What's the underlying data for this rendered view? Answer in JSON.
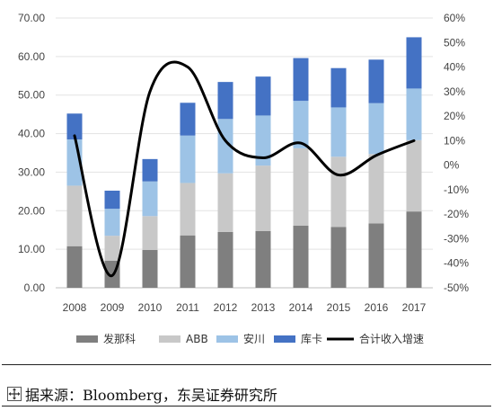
{
  "chart_data": {
    "type": "bar",
    "stacked": true,
    "categories": [
      "2008",
      "2009",
      "2010",
      "2011",
      "2012",
      "2013",
      "2014",
      "2015",
      "2016",
      "2017"
    ],
    "series": [
      {
        "name": "发那科",
        "color": "#7f7f7f",
        "values": [
          10.8,
          7.0,
          9.8,
          13.6,
          14.5,
          14.7,
          16.1,
          15.8,
          16.7,
          19.8
        ]
      },
      {
        "name": "ABB",
        "color": "#c8c8c8",
        "values": [
          15.7,
          6.5,
          8.8,
          13.6,
          15.2,
          17.0,
          20.1,
          18.2,
          18.0,
          18.5
        ]
      },
      {
        "name": "安川",
        "color": "#9dc3e6",
        "values": [
          12.0,
          7.0,
          9.0,
          12.3,
          14.1,
          13.0,
          12.3,
          12.8,
          13.2,
          13.4
        ]
      },
      {
        "name": "库卡",
        "color": "#4472c4",
        "values": [
          6.7,
          4.7,
          5.8,
          8.5,
          9.6,
          10.1,
          11.1,
          10.2,
          11.3,
          13.3
        ]
      }
    ],
    "line": {
      "name": "合计收入增速",
      "color": "#000000",
      "values": [
        12,
        -45,
        30,
        40,
        10,
        3,
        9,
        -4,
        4,
        10
      ]
    },
    "y_left": {
      "min": 0,
      "max": 70,
      "step": 10,
      "tick_labels": [
        "0.00",
        "10.00",
        "20.00",
        "30.00",
        "40.00",
        "50.00",
        "60.00",
        "70.00"
      ]
    },
    "y_right": {
      "min": -50,
      "max": 60,
      "step": 10,
      "tick_labels": [
        "-50%",
        "-40%",
        "-30%",
        "-20%",
        "-10%",
        "0%",
        "10%",
        "20%",
        "30%",
        "40%",
        "50%",
        "60%"
      ]
    },
    "grid": true,
    "legend_position": "bottom"
  },
  "source": {
    "text": "据来源：Bloomberg，东吴证券研究所"
  },
  "icons": {
    "move": "move-icon"
  }
}
